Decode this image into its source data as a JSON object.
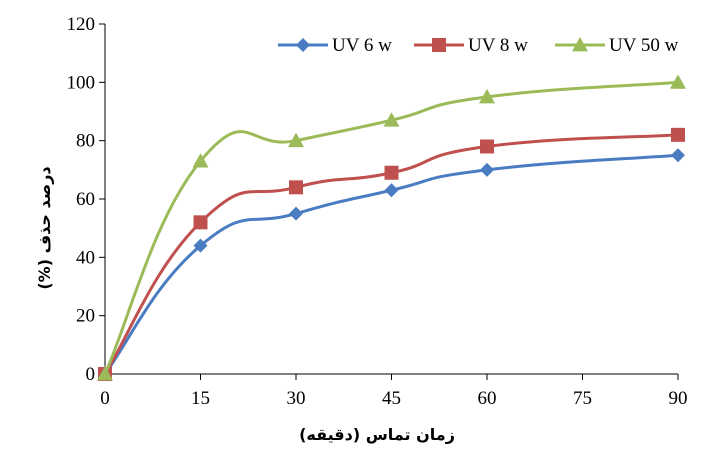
{
  "chart_data": {
    "type": "line",
    "x": [
      0,
      15,
      30,
      45,
      60,
      90
    ],
    "xticks": [
      0,
      15,
      30,
      45,
      60,
      75,
      90
    ],
    "yticks": [
      0,
      20,
      40,
      60,
      80,
      100,
      120
    ],
    "ylim": [
      0,
      120
    ],
    "xlabel": "زمان تماس (دقیقه)",
    "ylabel": "درصد حذف (%)",
    "legend_position": "top-right",
    "grid": false,
    "smooth": true,
    "series": [
      {
        "name": "UV 6 w",
        "color": "#4a7cc2",
        "marker": "diamond",
        "values": [
          0,
          44,
          55,
          63,
          70,
          75
        ]
      },
      {
        "name": "UV 8 w",
        "color": "#c0504d",
        "marker": "square",
        "values": [
          0,
          52,
          64,
          69,
          78,
          82
        ]
      },
      {
        "name": "UV 50 w",
        "color": "#9bbb59",
        "marker": "triangle",
        "values": [
          0,
          73,
          80,
          87,
          95,
          100
        ]
      }
    ]
  }
}
